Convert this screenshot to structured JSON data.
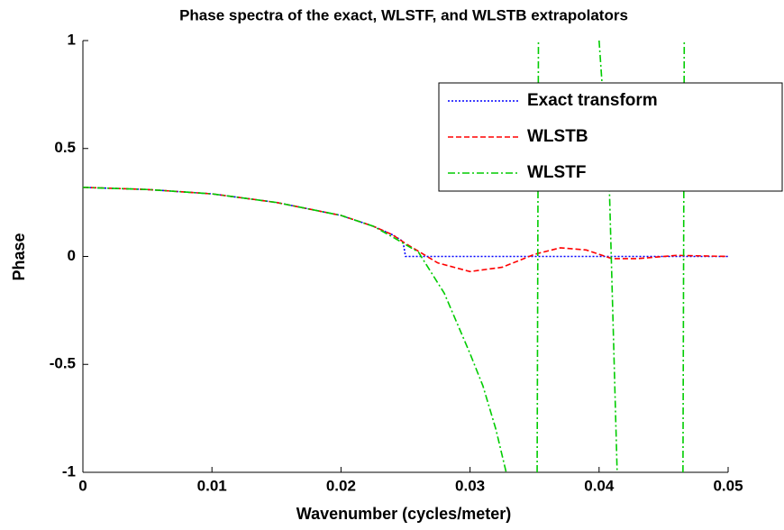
{
  "chart_data": {
    "type": "line",
    "title": "Phase spectra of the exact, WLSTF, and WLSTB extrapolators",
    "x_label": "Wavenumber (cycles/meter)",
    "y_label": "Phase",
    "xlim": [
      0,
      0.05
    ],
    "xticks": [
      0,
      0.01,
      0.02,
      0.03,
      0.04,
      0.05
    ],
    "ylim": [
      -1,
      1
    ],
    "yticks": [
      -1,
      -0.5,
      0,
      0.5,
      1
    ],
    "grid": false,
    "legend": "upper right",
    "series": [
      {
        "name": "Exact transform",
        "color": "#0000ff",
        "style": "dotted",
        "x": [
          0,
          0.005,
          0.01,
          0.015,
          0.02,
          0.0225,
          0.024,
          0.0248,
          0.025,
          0.05
        ],
        "values": [
          0.32,
          0.31,
          0.29,
          0.25,
          0.19,
          0.14,
          0.1,
          0.07,
          0,
          0
        ]
      },
      {
        "name": "WLSTB",
        "color": "#ff0000",
        "style": "dashed",
        "x": [
          0,
          0.005,
          0.01,
          0.015,
          0.02,
          0.0225,
          0.024,
          0.025,
          0.0275,
          0.03,
          0.0325,
          0.035,
          0.037,
          0.039,
          0.041,
          0.043,
          0.046,
          0.05
        ],
        "values": [
          0.32,
          0.31,
          0.29,
          0.25,
          0.19,
          0.14,
          0.1,
          0.06,
          -0.03,
          -0.07,
          -0.05,
          0.01,
          0.04,
          0.03,
          -0.01,
          -0.01,
          0.005,
          0
        ]
      },
      {
        "name": "WLSTF",
        "color": "#00cc00",
        "style": "dashdot",
        "x": [
          0,
          0.005,
          0.01,
          0.015,
          0.02,
          0.0225,
          0.024,
          0.026,
          0.028,
          0.03,
          0.031,
          0.032,
          0.0328,
          0.034,
          0.0352,
          0.0353,
          0.038,
          0.04,
          0.0408,
          0.0414,
          0.044,
          0.0465,
          0.0466
        ],
        "values": [
          0.32,
          0.31,
          0.29,
          0.25,
          0.19,
          0.14,
          0.09,
          0.02,
          -0.17,
          -0.45,
          -0.6,
          -0.8,
          -1,
          null,
          -1,
          1,
          null,
          1,
          0.31,
          -1,
          null,
          -1,
          1
        ]
      }
    ]
  }
}
